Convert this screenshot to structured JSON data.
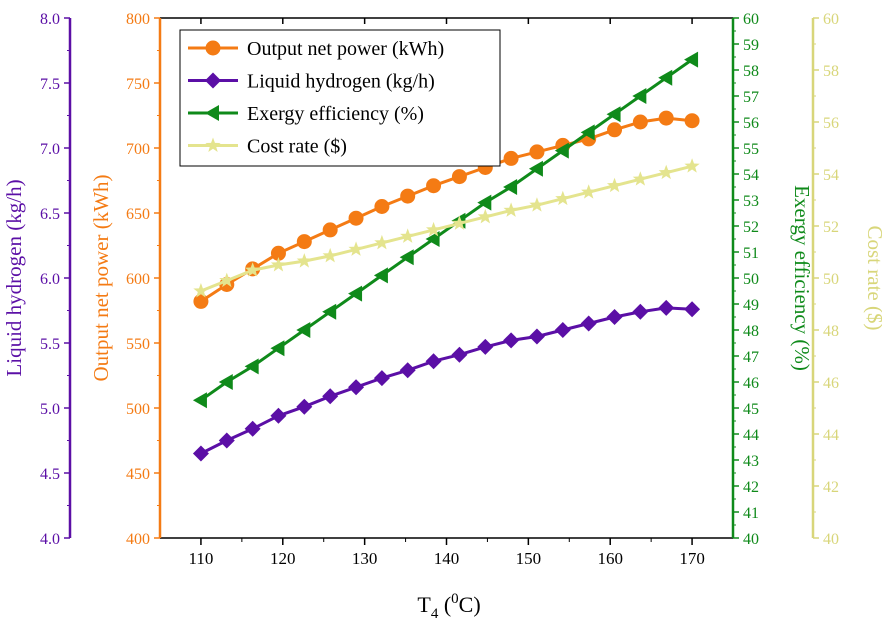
{
  "chart_data": {
    "type": "line",
    "xlabel": "T",
    "xlabel_sub": "4",
    "xlabel_paren_open": " (",
    "xlabel_sup": "0",
    "xlabel_unit": "C)",
    "x": [
      110,
      113.16,
      116.32,
      119.47,
      122.63,
      125.79,
      128.95,
      132.11,
      135.26,
      138.42,
      141.58,
      144.74,
      147.89,
      151.05,
      154.21,
      157.37,
      160.53,
      163.68,
      166.84,
      170
    ],
    "xlim": [
      105,
      175
    ],
    "xticks": [
      110,
      120,
      130,
      140,
      150,
      160,
      170
    ],
    "axes": [
      {
        "id": "lh",
        "label": "Liquid hydrogen (kg/h)",
        "color": "#5b0fa6",
        "ylim": [
          4.0,
          8.0
        ],
        "ticks": [
          "4.0",
          "4.5",
          "5.0",
          "5.5",
          "6.0",
          "6.5",
          "7.0",
          "7.5",
          "8.0"
        ]
      },
      {
        "id": "onp",
        "label": "Output net power (kWh)",
        "color": "#f47b14",
        "ylim": [
          400,
          800
        ],
        "ticks": [
          "400",
          "450",
          "500",
          "550",
          "600",
          "650",
          "700",
          "750",
          "800"
        ]
      },
      {
        "id": "ex",
        "label": "Exergy efficiency (%)",
        "color": "#0f8a1a",
        "ylim": [
          40,
          60
        ],
        "ticks": [
          "40",
          "41",
          "42",
          "43",
          "44",
          "45",
          "46",
          "47",
          "48",
          "49",
          "50",
          "51",
          "52",
          "53",
          "54",
          "55",
          "56",
          "57",
          "58",
          "59",
          "60"
        ]
      },
      {
        "id": "cr",
        "label": "Cost rate ($)",
        "color": "#d8d67a",
        "ylim": [
          40,
          60
        ],
        "ticks": [
          "40",
          "42",
          "44",
          "46",
          "48",
          "50",
          "52",
          "54",
          "56",
          "58",
          "60"
        ]
      }
    ],
    "series": [
      {
        "name": "Output net power (kWh)",
        "axis": "onp",
        "color": "#f47b14",
        "marker": "circle",
        "values": [
          582,
          595,
          607,
          619,
          628,
          637,
          646,
          655,
          663,
          671,
          678,
          685,
          692,
          697,
          702,
          707,
          714,
          720,
          723,
          721
        ]
      },
      {
        "name": "Liquid hydrogen (kg/h)",
        "axis": "lh",
        "color": "#5b0fa6",
        "marker": "diamond",
        "values": [
          4.65,
          4.75,
          4.84,
          4.94,
          5.01,
          5.09,
          5.16,
          5.23,
          5.29,
          5.36,
          5.41,
          5.47,
          5.52,
          5.55,
          5.6,
          5.65,
          5.7,
          5.74,
          5.77,
          5.76
        ]
      },
      {
        "name": "Exergy efficiency (%)",
        "axis": "ex",
        "color": "#0f8a1a",
        "marker": "triangle-left",
        "values": [
          45.3,
          46.0,
          46.6,
          47.3,
          48.0,
          48.7,
          49.4,
          50.1,
          50.8,
          51.5,
          52.2,
          52.9,
          53.5,
          54.2,
          54.9,
          55.6,
          56.3,
          57.0,
          57.7,
          58.4
        ]
      },
      {
        "name": "Cost rate ($)",
        "axis": "cr",
        "color": "#e4e48e",
        "marker": "star",
        "values": [
          49.5,
          49.9,
          50.3,
          50.5,
          50.65,
          50.85,
          51.1,
          51.35,
          51.6,
          51.85,
          52.1,
          52.35,
          52.6,
          52.8,
          53.05,
          53.3,
          53.55,
          53.8,
          54.05,
          54.3
        ]
      }
    ],
    "legend_position": "top-left",
    "grid": false
  }
}
